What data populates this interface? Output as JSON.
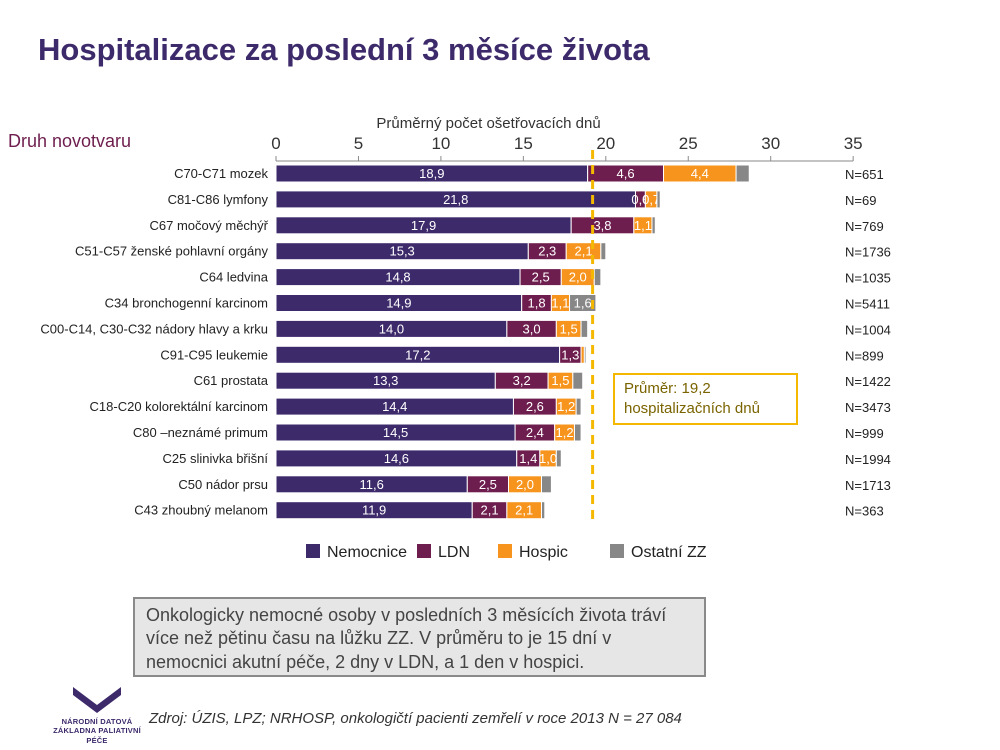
{
  "page": {
    "title": "Hospitalizace za poslední 3 měsíce života",
    "note": "Onkologicky nemocné osoby v posledních 3 měsících života tráví více než pětinu času na lůžku ZZ. V průměru to je 15 dní v nemocnici akutní péče, 2 dny v LDN, a 1 den v hospici.",
    "source": "Zdroj: ÚZIS, LPZ; NRHOSP, onkologičtí pacienti zemřelí v roce 2013 N = 27 084",
    "logo_text": "NÁRODNÍ DATOVÁ\nZÁKLADNA PALIATIVNÍ PÉČE",
    "logo_icon": "bird-chevron-icon"
  },
  "chart_data": {
    "type": "bar",
    "orientation": "horizontal",
    "stacked": true,
    "xlabel": "Průměrný počet ošetřovacích dnů",
    "ylabel": "Druh novotvaru",
    "xlim": [
      0,
      35
    ],
    "xticks": [
      "0",
      "5",
      "10",
      "15",
      "20",
      "25",
      "30",
      "35"
    ],
    "grid": false,
    "legend_position": "bottom",
    "categories": [
      "C70-C71 mozek",
      "C81-C86 lymfony",
      "C67 močový měchýř",
      "C51-C57 ženské pohlavní orgány",
      "C64 ledvina",
      "C34 bronchogenní karcinom",
      "C00-C14, C30-C32 nádory hlavy a krku",
      "C91-C95 leukemie",
      "C61 prostata",
      "C18-C20 kolorektální karcinom",
      "C80 –neznámé primum",
      "C25 slinivka břišní",
      "C50 nádor prsu",
      "C43 zhoubný  melanom"
    ],
    "counts": [
      "N=651",
      "N=69",
      "N=769",
      "N=1736",
      "N=1035",
      "N=5411",
      "N=1004",
      "N=899",
      "N=1422",
      "N=3473",
      "N=999",
      "N=1994",
      "N=1713",
      "N=363"
    ],
    "series": [
      {
        "name": "Nemocnice",
        "color": "#3d2a6b",
        "values": [
          18.9,
          21.8,
          17.9,
          15.3,
          14.8,
          14.9,
          14.0,
          17.2,
          13.3,
          14.4,
          14.5,
          14.6,
          11.6,
          11.9
        ],
        "labels": [
          "18,9",
          "21,8",
          "17,9",
          "15,3",
          "14,8",
          "14,9",
          "14,0",
          "17,2",
          "13,3",
          "14,4",
          "14,5",
          "14,6",
          "11,6",
          "11,9"
        ]
      },
      {
        "name": "LDN",
        "color": "#6e1e4e",
        "values": [
          4.6,
          0.6,
          3.8,
          2.3,
          2.5,
          1.8,
          3.0,
          1.3,
          3.2,
          2.6,
          2.4,
          1.4,
          2.5,
          2.1
        ],
        "labels": [
          "4,6",
          "0,6",
          "3,8",
          "2,3",
          "2,5",
          "1,8",
          "3,0",
          "1,3",
          "3,2",
          "2,6",
          "2,4",
          "1,4",
          "2,5",
          "2,1"
        ]
      },
      {
        "name": "Hospic",
        "color": "#f7941d",
        "values": [
          4.4,
          0.7,
          1.1,
          2.1,
          2.0,
          1.1,
          1.5,
          0.2,
          1.5,
          1.2,
          1.2,
          1.0,
          2.0,
          2.1
        ],
        "labels": [
          "4,4",
          "0,7",
          "1,1",
          "2,1",
          "2,0",
          "1,1",
          "1,5",
          "",
          "1,5",
          "1,2",
          "1,2",
          "1,0",
          "2,0",
          "2,1"
        ]
      },
      {
        "name": "Ostatní ZZ",
        "color": "#878787",
        "values": [
          0.8,
          0.2,
          0.2,
          0.3,
          0.4,
          1.6,
          0.4,
          0.1,
          0.6,
          0.3,
          0.4,
          0.3,
          0.6,
          0.2
        ],
        "labels": [
          "",
          "",
          "",
          "",
          "",
          "1,6",
          "",
          "",
          "",
          "",
          "",
          "",
          "",
          ""
        ]
      }
    ],
    "mean_line": {
      "value": 19.2,
      "color": "#f5b800"
    },
    "annotation": {
      "line1": "Průměr: 19,2",
      "line2": "hospitalizačních dnů",
      "color": "#f5b800",
      "text_color": "#7a6400"
    }
  }
}
